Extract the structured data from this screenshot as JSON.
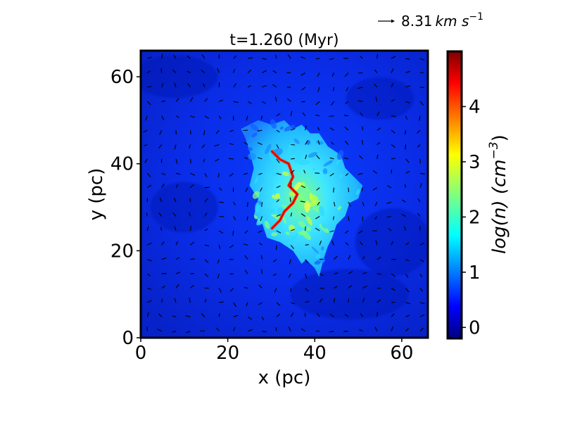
{
  "chart_data": {
    "type": "heatmap",
    "title": "t=1.260 (Myr)",
    "xlabel": "x (pc)",
    "ylabel": "y (pc)",
    "xlim": [
      0,
      66
    ],
    "ylim": [
      0,
      66
    ],
    "xticks": [
      "0",
      "20",
      "40",
      "60"
    ],
    "yticks": [
      "0",
      "20",
      "40",
      "60"
    ],
    "colorbar": {
      "label": "log(n) (cm",
      "label_exp": "−3",
      "label_close": ")",
      "range": [
        -0.2,
        5.0
      ],
      "ticks": [
        "0",
        "1",
        "2",
        "3",
        "4"
      ],
      "colormap": "jet"
    },
    "quiver_key": {
      "value": "8.31",
      "unit": "km s",
      "unit_exp": "−1"
    },
    "cloud": {
      "center": [
        36,
        32
      ],
      "outline_polygon": [
        [
          23,
          48
        ],
        [
          27,
          50
        ],
        [
          30,
          49
        ],
        [
          33,
          50
        ],
        [
          35,
          48
        ],
        [
          37,
          49
        ],
        [
          39,
          47
        ],
        [
          41,
          47
        ],
        [
          43,
          44
        ],
        [
          46,
          42
        ],
        [
          47,
          39
        ],
        [
          49,
          37
        ],
        [
          51,
          35
        ],
        [
          50,
          32
        ],
        [
          48,
          31
        ],
        [
          47,
          28
        ],
        [
          45,
          26
        ],
        [
          44,
          23
        ],
        [
          43,
          21
        ],
        [
          42,
          18
        ],
        [
          41,
          14
        ],
        [
          40,
          16
        ],
        [
          38,
          18
        ],
        [
          37,
          17
        ],
        [
          35,
          20
        ],
        [
          32,
          22
        ],
        [
          29,
          23
        ],
        [
          28,
          26
        ],
        [
          26,
          28
        ],
        [
          27,
          32
        ],
        [
          25,
          35
        ],
        [
          26,
          39
        ],
        [
          25,
          43
        ],
        [
          24,
          46
        ]
      ],
      "filament_path": [
        [
          30,
          43
        ],
        [
          32,
          41
        ],
        [
          34,
          40
        ],
        [
          35,
          37
        ],
        [
          34,
          35
        ],
        [
          36,
          33
        ],
        [
          35,
          31
        ],
        [
          33,
          29
        ],
        [
          32,
          27
        ],
        [
          30,
          25
        ]
      ]
    },
    "background_value": 0.4,
    "cloud_value_range": [
      1.2,
      3.0
    ],
    "filament_value": 4.0
  }
}
